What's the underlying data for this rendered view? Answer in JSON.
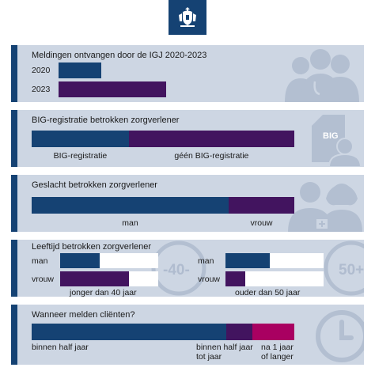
{
  "colors": {
    "blue": "#154273",
    "purple": "#42145f",
    "magenta": "#a90061",
    "panel": "#cdd6e3",
    "icon": "#b3bfd1"
  },
  "icons": [
    "rijksoverheid-logo",
    "doctors-icon",
    "big-document-icon",
    "man-woman-icon",
    "clock-icon"
  ],
  "panel1": {
    "title": "Meldingen ontvangen door de IGJ 2020-2023",
    "chart_data": {
      "type": "bar",
      "categories": [
        "2020",
        "2023"
      ],
      "values": [
        29,
        73
      ],
      "scale_max": 100
    }
  },
  "panel2": {
    "title": "BIG-registratie betrokken zorgverlener",
    "doc_label": "BIG",
    "chart_data": {
      "type": "bar",
      "stacked": true,
      "series": [
        {
          "name": "BIG-registratie",
          "value": 37
        },
        {
          "name": "géén BIG-registratie",
          "value": 63
        }
      ]
    }
  },
  "panel3": {
    "title": "Geslacht betrokken zorgverlener",
    "chart_data": {
      "type": "bar",
      "stacked": true,
      "series": [
        {
          "name": "man",
          "value": 75
        },
        {
          "name": "vrouw",
          "value": 25
        }
      ]
    }
  },
  "panel4": {
    "title": "Leeftijd betrokken zorgverlener",
    "left_number": "-40-",
    "right_number": "50+",
    "chart_data": [
      {
        "type": "bar",
        "label": "jonger dan 40 jaar",
        "categories": [
          "man",
          "vrouw"
        ],
        "values": [
          40,
          70
        ]
      },
      {
        "type": "bar",
        "label": "ouder dan 50 jaar",
        "categories": [
          "man",
          "vrouw"
        ],
        "values": [
          45,
          20
        ]
      }
    ]
  },
  "panel5": {
    "title": "Wanneer melden cliënten?",
    "chart_data": {
      "type": "bar",
      "stacked": true,
      "series": [
        {
          "name": "binnen half jaar",
          "value": 74
        },
        {
          "name": "binnen half jaar tot jaar",
          "value": 10
        },
        {
          "name": "na 1 jaar of langer",
          "value": 16
        }
      ]
    },
    "labels": {
      "seg1": "binnen half jaar",
      "seg2_line1": "binnen half jaar",
      "seg2_line2": "tot jaar",
      "seg3_line1": "na 1 jaar",
      "seg3_line2": "of langer"
    }
  }
}
